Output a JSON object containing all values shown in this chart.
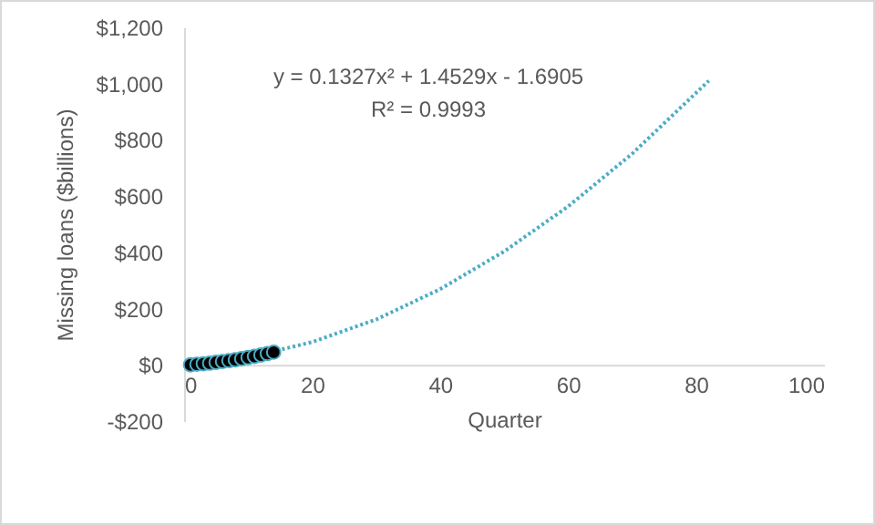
{
  "chart_data": {
    "type": "scatter",
    "xlabel": "Quarter",
    "ylabel": "Missing loans ($billions)",
    "annotations": [
      "y = 0.1327x² + 1.4529x - 1.6905",
      "R² = 0.9993"
    ],
    "series": [
      {
        "color": "#000000",
        "x": [
          1,
          2,
          3,
          4,
          5,
          6,
          7,
          8,
          9,
          10,
          11,
          12,
          13,
          14
        ],
        "values": [
          0,
          2,
          4,
          6,
          9,
          12,
          15,
          18,
          22,
          26,
          30,
          35,
          40,
          45
        ]
      },
      {
        "type": "line",
        "color": "#4bacc6",
        "line_style": "dotted",
        "marker": "none",
        "x": [
          1,
          10,
          20,
          30,
          40,
          50,
          60,
          70,
          82
        ],
        "values": [
          0,
          26,
          81,
          161,
          269,
          403,
          563,
          750,
          1010
        ]
      }
    ],
    "xlim": [
      0,
      100
    ],
    "xticks": [
      0,
      20,
      40,
      60,
      80,
      100
    ],
    "ylim": [
      -200,
      1200
    ],
    "yticks": [
      {
        "value": -200,
        "label": "-$200"
      },
      {
        "value": 0,
        "label": "$0"
      },
      {
        "value": 200,
        "label": "$200"
      },
      {
        "value": 400,
        "label": "$400"
      },
      {
        "value": 600,
        "label": "$600"
      },
      {
        "value": 800,
        "label": "$800"
      },
      {
        "value": 1000,
        "label": "$1,000"
      },
      {
        "value": 1200,
        "label": "$1,200"
      }
    ],
    "marker": "circle",
    "grid": false
  }
}
